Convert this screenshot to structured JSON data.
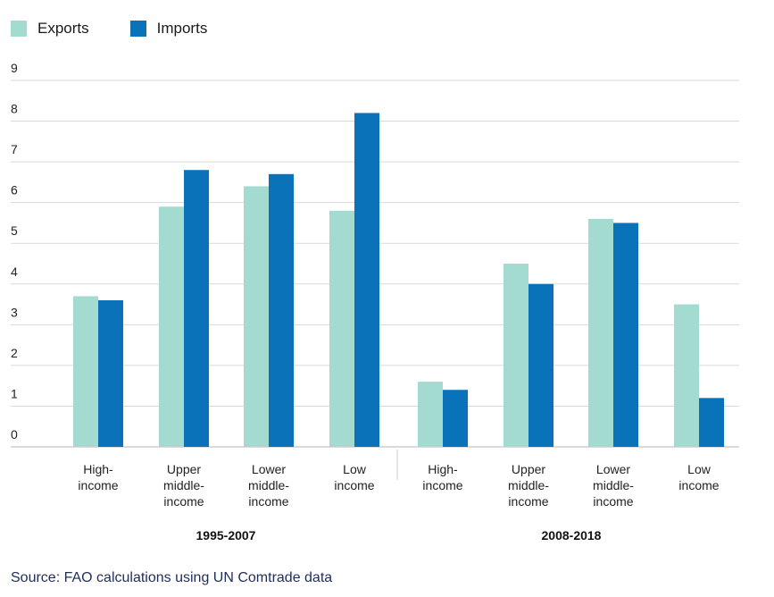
{
  "legend": {
    "exports_label": "Exports",
    "imports_label": "Imports"
  },
  "colors": {
    "exports": "#a3dbd0",
    "imports": "#0a72b8",
    "grid": "#d9d9d9"
  },
  "source": "Source: FAO calculations using UN Comtrade data",
  "chart_data": {
    "type": "bar",
    "title": "",
    "xlabel": "",
    "ylabel": "",
    "ylim": [
      0,
      9
    ],
    "yticks": [
      0,
      1,
      2,
      3,
      4,
      5,
      6,
      7,
      8,
      9
    ],
    "grid": true,
    "legend_position": "top-left",
    "groups": [
      {
        "label": "1995-2007",
        "categories": [
          [
            "High-",
            "income"
          ],
          [
            "Upper",
            "middle-",
            "income"
          ],
          [
            "Lower",
            "middle-",
            "income"
          ],
          [
            "Low",
            "income"
          ]
        ],
        "series": [
          {
            "name": "Exports",
            "values": [
              3.7,
              5.9,
              6.4,
              5.8
            ]
          },
          {
            "name": "Imports",
            "values": [
              3.6,
              6.8,
              6.7,
              8.2
            ]
          }
        ]
      },
      {
        "label": "2008-2018",
        "categories": [
          [
            "High-",
            "income"
          ],
          [
            "Upper",
            "middle-",
            "income"
          ],
          [
            "Lower",
            "middle-",
            "income"
          ],
          [
            "Low",
            "income"
          ]
        ],
        "series": [
          {
            "name": "Exports",
            "values": [
              1.6,
              4.5,
              5.6,
              3.5
            ]
          },
          {
            "name": "Imports",
            "values": [
              1.4,
              4.0,
              5.5,
              1.2
            ]
          }
        ]
      }
    ]
  }
}
